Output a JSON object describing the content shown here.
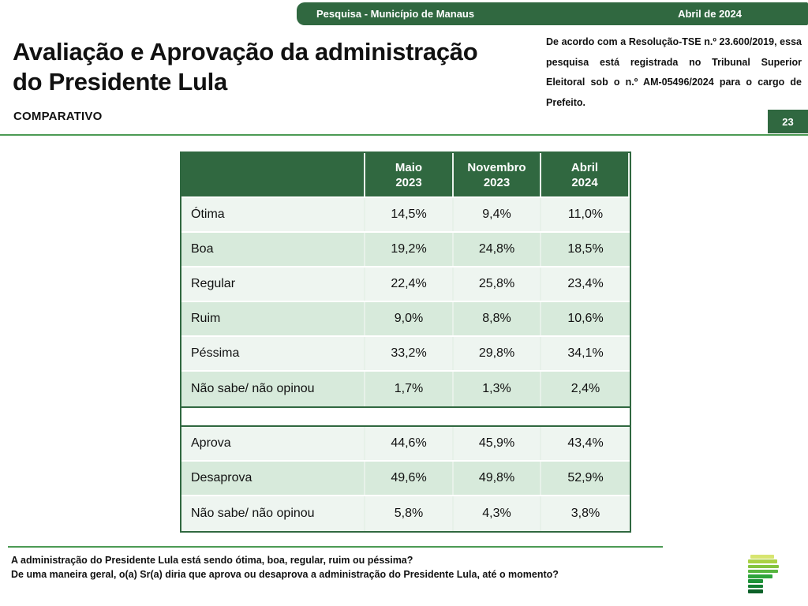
{
  "topbar": {
    "title": "Pesquisa - Município de Manaus",
    "date": "Abril de 2024"
  },
  "header": {
    "title_line1": "Avaliação e Aprovação da administração",
    "title_line2": "do Presidente Lula",
    "subtitle": "COMPARATIVO",
    "tse_note": "De acordo com a Resolução-TSE n.º 23.600/2019, essa pesquisa está registrada no Tribunal Superior Eleitoral sob o n.º AM-05496/2024 para o cargo de Prefeito.",
    "page_number": "23"
  },
  "table": {
    "columns": [
      {
        "line1": "Maio",
        "line2": "2023"
      },
      {
        "line1": "Novembro",
        "line2": "2023"
      },
      {
        "line1": "Abril",
        "line2": "2024"
      }
    ],
    "sections": [
      {
        "rows": [
          {
            "label": "Ótima",
            "values": [
              "14,5%",
              "9,4%",
              "11,0%"
            ]
          },
          {
            "label": "Boa",
            "values": [
              "19,2%",
              "24,8%",
              "18,5%"
            ]
          },
          {
            "label": "Regular",
            "values": [
              "22,4%",
              "25,8%",
              "23,4%"
            ]
          },
          {
            "label": "Ruim",
            "values": [
              "9,0%",
              "8,8%",
              "10,6%"
            ]
          },
          {
            "label": "Péssima",
            "values": [
              "33,2%",
              "29,8%",
              "34,1%"
            ]
          },
          {
            "label": "Não sabe/ não opinou",
            "values": [
              "1,7%",
              "1,3%",
              "2,4%"
            ]
          }
        ]
      },
      {
        "rows": [
          {
            "label": "Aprova",
            "values": [
              "44,6%",
              "45,9%",
              "43,4%"
            ]
          },
          {
            "label": "Desaprova",
            "values": [
              "49,6%",
              "49,8%",
              "52,9%"
            ]
          },
          {
            "label": "Não sabe/ não opinou",
            "values": [
              "5,8%",
              "4,3%",
              "3,8%"
            ]
          }
        ]
      }
    ]
  },
  "chart_data": {
    "type": "table",
    "title": "Avaliação e Aprovação da administração do Presidente Lula — Comparativo",
    "columns": [
      "Maio 2023",
      "Novembro 2023",
      "Abril 2024"
    ],
    "evaluation": {
      "categories": [
        "Ótima",
        "Boa",
        "Regular",
        "Ruim",
        "Péssima",
        "Não sabe/ não opinou"
      ],
      "series": [
        {
          "name": "Maio 2023",
          "values": [
            14.5,
            19.2,
            22.4,
            9.0,
            33.2,
            1.7
          ]
        },
        {
          "name": "Novembro 2023",
          "values": [
            9.4,
            24.8,
            25.8,
            8.8,
            29.8,
            1.3
          ]
        },
        {
          "name": "Abril 2024",
          "values": [
            11.0,
            18.5,
            23.4,
            10.6,
            34.1,
            2.4
          ]
        }
      ],
      "unit": "%"
    },
    "approval": {
      "categories": [
        "Aprova",
        "Desaprova",
        "Não sabe/ não opinou"
      ],
      "series": [
        {
          "name": "Maio 2023",
          "values": [
            44.6,
            49.6,
            5.8
          ]
        },
        {
          "name": "Novembro 2023",
          "values": [
            45.9,
            49.8,
            4.3
          ]
        },
        {
          "name": "Abril 2024",
          "values": [
            43.4,
            52.9,
            3.8
          ]
        }
      ],
      "unit": "%"
    }
  },
  "footer": {
    "question1": "A administração do Presidente Lula está sendo ótima, boa, regular, ruim ou péssima?",
    "question2": "De uma maneira geral, o(a) Sr(a) diria que aprova ou desaprova a administração do Presidente Lula, até o momento?"
  },
  "logo": {
    "bar_colors": [
      "#d7e570",
      "#abd244",
      "#84c43f",
      "#57b53f",
      "#2ea43c",
      "#1e9238",
      "#157e32",
      "#0d6129"
    ]
  },
  "colors": {
    "dark_green": "#306840",
    "divider_green": "#4c9a54",
    "row_light": "#eef5f0",
    "row_green": "#d7eadb"
  }
}
